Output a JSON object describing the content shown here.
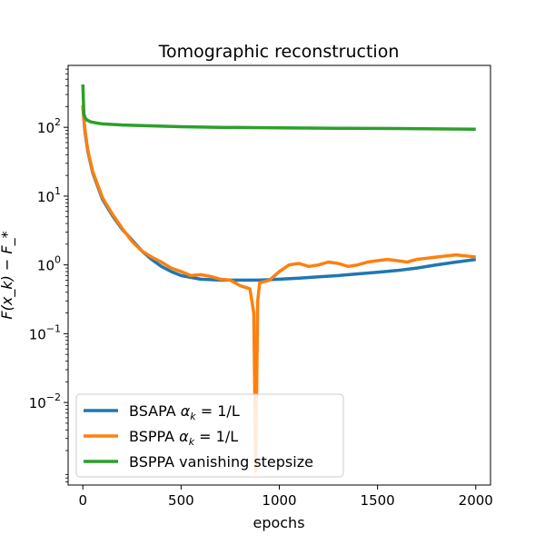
{
  "chart_data": {
    "type": "line",
    "title": "Tomographic reconstruction",
    "xlabel": "epochs",
    "ylabel": "F(x_k) − F_*",
    "xlim": [
      -75,
      2075
    ],
    "ylim_log10": [
      -3.2,
      2.9
    ],
    "yscale": "log",
    "grid": false,
    "legend_position": "lower-left",
    "x_ticks": [
      {
        "value": 0,
        "label": "0"
      },
      {
        "value": 500,
        "label": "500"
      },
      {
        "value": 1000,
        "label": "1000"
      },
      {
        "value": 1500,
        "label": "1500"
      },
      {
        "value": 2000,
        "label": "2000"
      }
    ],
    "y_ticks": [
      {
        "log10": 2,
        "base": "10",
        "exp": "2"
      },
      {
        "log10": 1,
        "base": "10",
        "exp": "1"
      },
      {
        "log10": 0,
        "base": "10",
        "exp": "0"
      },
      {
        "log10": -1,
        "base": "10",
        "exp": "−1"
      },
      {
        "log10": -2,
        "base": "10",
        "exp": "−2"
      }
    ],
    "series": [
      {
        "name": "BSAPA α_k = 1/L",
        "legend_main": "BSAPA ",
        "legend_math": "α",
        "legend_sub": "k",
        "legend_tail": " = 1/L",
        "color": "#1f77b4",
        "x": [
          0,
          10,
          25,
          50,
          100,
          150,
          200,
          250,
          300,
          350,
          400,
          450,
          500,
          600,
          700,
          800,
          900,
          1000,
          1100,
          1200,
          1300,
          1400,
          1500,
          1600,
          1700,
          1800,
          1900,
          2000
        ],
        "y": [
          200,
          90,
          45,
          22,
          9,
          5.2,
          3.3,
          2.3,
          1.6,
          1.2,
          0.95,
          0.8,
          0.7,
          0.62,
          0.6,
          0.6,
          0.6,
          0.62,
          0.64,
          0.67,
          0.7,
          0.74,
          0.78,
          0.83,
          0.9,
          1.0,
          1.1,
          1.2
        ]
      },
      {
        "name": "BSPPA α_k = 1/L",
        "legend_main": "BSPPA ",
        "legend_math": "α",
        "legend_sub": "k",
        "legend_tail": " = 1/L",
        "color": "#ff7f0e",
        "x": [
          0,
          10,
          25,
          50,
          100,
          150,
          200,
          250,
          300,
          350,
          400,
          450,
          500,
          550,
          600,
          650,
          700,
          750,
          800,
          850,
          870,
          880,
          890,
          900,
          950,
          1000,
          1050,
          1100,
          1150,
          1200,
          1250,
          1300,
          1350,
          1400,
          1450,
          1500,
          1550,
          1600,
          1650,
          1700,
          1750,
          1800,
          1850,
          1900,
          1950,
          2000
        ],
        "y": [
          210,
          95,
          47,
          23,
          9.5,
          5.5,
          3.4,
          2.2,
          1.6,
          1.3,
          1.1,
          0.9,
          0.8,
          0.7,
          0.72,
          0.68,
          0.62,
          0.6,
          0.5,
          0.45,
          0.2,
          0.001,
          0.3,
          0.55,
          0.6,
          0.8,
          1.0,
          1.05,
          0.95,
          1.0,
          1.1,
          1.05,
          0.95,
          1.0,
          1.1,
          1.15,
          1.2,
          1.15,
          1.1,
          1.2,
          1.25,
          1.3,
          1.35,
          1.4,
          1.35,
          1.3
        ]
      },
      {
        "name": "BSPPA vanishing stepsize",
        "legend_main": "BSPPA vanishing stepsize",
        "legend_math": "",
        "legend_sub": "",
        "legend_tail": "",
        "color": "#2ca02c",
        "x": [
          0,
          5,
          10,
          20,
          40,
          75,
          100,
          150,
          200,
          300,
          400,
          500,
          700,
          1000,
          1300,
          1600,
          2000
        ],
        "y": [
          420,
          160,
          140,
          128,
          120,
          115,
          112,
          110,
          108,
          106,
          104,
          102,
          100,
          98,
          97,
          96,
          94
        ]
      }
    ]
  }
}
